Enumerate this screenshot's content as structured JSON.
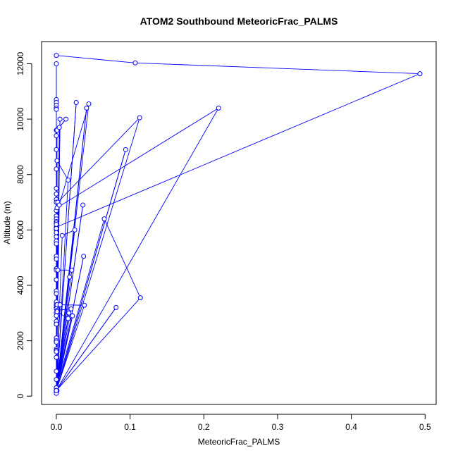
{
  "chart_data": {
    "type": "line",
    "title": "ATOM2 Southbound MeteoricFrac_PALMS",
    "xlabel": "MeteoricFrac_PALMS",
    "ylabel": "Altitude (m)",
    "xlim": [
      -0.02,
      0.515
    ],
    "ylim": [
      -300,
      12800
    ],
    "xticks": [
      0.0,
      0.1,
      0.2,
      0.3,
      0.4,
      0.5
    ],
    "xtick_labels": [
      "0.0",
      "0.1",
      "0.2",
      "0.3",
      "0.4",
      "0.5"
    ],
    "yticks": [
      0,
      2000,
      4000,
      6000,
      8000,
      10000,
      12000
    ],
    "ytick_labels": [
      "0",
      "2000",
      "4000",
      "6000",
      "8000",
      "10000",
      "12000"
    ],
    "series_color": "#0000ff",
    "marker": "open-circle",
    "grid": false,
    "legend": "none",
    "series": [
      {
        "x": [
          0.0,
          0.107,
          0.493,
          0.0,
          0.0,
          0.0,
          0.0,
          0.0,
          0.0,
          0.0,
          0.0,
          0.0,
          0.0,
          0.0,
          0.0,
          0.0,
          0.0,
          0.0,
          0.0,
          0.0,
          0.0,
          0.0,
          0.0,
          0.0,
          0.0,
          0.0,
          0.0,
          0.0,
          0.0,
          0.0,
          0.0,
          0.0,
          0.0,
          0.0,
          0.0,
          0.0,
          0.0,
          0.0,
          0.0,
          0.0,
          0.0,
          0.0,
          0.0,
          0.0,
          0.0,
          0.0,
          0.0,
          0.0,
          0.0,
          0.0,
          0.0,
          0.0,
          0.0,
          0.0,
          0.0,
          0.0,
          0.0,
          0.0,
          0.0,
          0.005,
          0.0,
          0.027,
          0.0,
          0.001,
          0.013,
          0.004,
          0.0,
          0.0,
          0.001,
          0.016,
          0.001,
          0.041,
          0.0,
          0.002,
          0.113,
          0.0,
          0.094,
          0.0,
          0.001,
          0.22,
          0.0,
          0.004,
          0.044,
          0.0,
          0.036,
          0.0,
          0.008,
          0.025,
          0.0,
          0.0,
          0.065,
          0.114,
          0.0,
          0.081,
          0.0,
          0.001,
          0.038,
          0.0,
          0.037,
          0.0,
          0.002,
          0.021,
          0.0,
          0.018,
          0.0,
          0.02,
          0.001,
          0.001,
          0.016,
          0.0,
          0.022,
          0.0,
          0.017,
          0.0,
          0.005,
          0.0,
          0.0,
          0.0,
          0.0
        ],
        "y": [
          12300,
          12030,
          11640,
          6100,
          6000,
          5900,
          5750,
          5600,
          5500,
          5050,
          4950,
          4600,
          4550,
          4200,
          3800,
          3700,
          3400,
          3300,
          3200,
          3150,
          3000,
          2900,
          2700,
          2600,
          2100,
          2000,
          1950,
          1700,
          1650,
          1600,
          1400,
          900,
          600,
          300,
          200,
          180,
          200,
          12000,
          10700,
          10600,
          10500,
          10400,
          10350,
          9600,
          9400,
          8900,
          8200,
          7500,
          7300,
          7100,
          7000,
          6700,
          6500,
          6400,
          6300,
          6250,
          6200,
          6050,
          200,
          10000,
          200,
          10600,
          200,
          9600,
          10000,
          9700,
          200,
          300,
          8500,
          7800,
          200,
          10400,
          200,
          7000,
          10050,
          200,
          8900,
          200,
          6800,
          10400,
          200,
          6900,
          10550,
          200,
          6900,
          200,
          5800,
          6000,
          200,
          300,
          6400,
          3550,
          200,
          3200,
          200,
          3300,
          3280,
          200,
          5050,
          200,
          4550,
          4550,
          200,
          4300,
          200,
          3150,
          3100,
          3050,
          2800,
          200,
          2900,
          200,
          3000,
          200,
          3300,
          200,
          150,
          100,
          200
        ]
      }
    ]
  }
}
